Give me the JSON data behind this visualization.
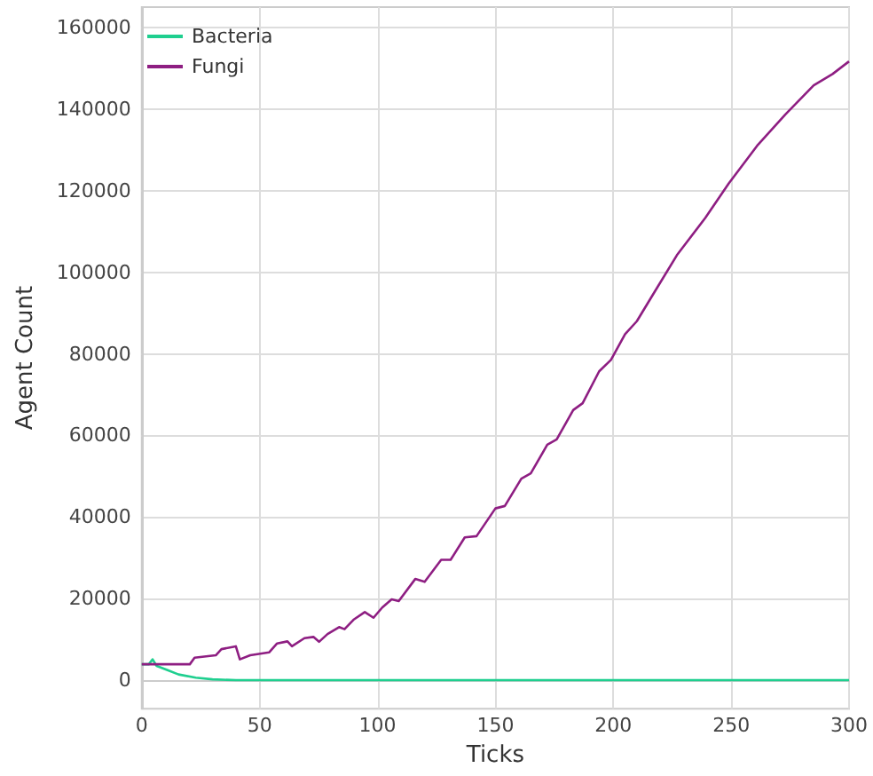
{
  "chart_data": {
    "type": "line",
    "xlabel": "Ticks",
    "ylabel": "Agent Count",
    "xlim": [
      0,
      300
    ],
    "ylim": [
      -7000,
      165000
    ],
    "xticks": [
      0,
      50,
      100,
      150,
      200,
      250,
      300
    ],
    "yticks": [
      0,
      20000,
      40000,
      60000,
      80000,
      100000,
      120000,
      140000,
      160000
    ],
    "grid": true,
    "legend": "top left",
    "marker": "none",
    "series": [
      {
        "name": "Bacteria",
        "color": "#1fcf8f",
        "x": [
          0,
          3,
          4.6,
          6.3,
          10.7,
          15.6,
          22.9,
          30,
          40,
          100,
          200,
          300
        ],
        "values": [
          3900,
          3900,
          5100,
          3500,
          2500,
          1400,
          600,
          200,
          0,
          0,
          0,
          0
        ]
      },
      {
        "name": "Fungi",
        "color": "#8e1e82",
        "x": [
          0,
          20.4,
          22.4,
          31.4,
          33.8,
          39.9,
          41.6,
          46,
          54,
          57.4,
          61.8,
          63.7,
          69,
          72.8,
          75.2,
          78.8,
          83.7,
          86,
          89.8,
          94.6,
          98.3,
          102,
          106,
          109,
          116,
          120,
          127,
          131,
          137,
          142,
          150,
          154,
          161,
          165,
          172,
          176,
          183,
          187,
          194,
          199,
          205,
          210,
          217,
          227,
          239,
          249,
          261,
          273,
          285,
          293,
          300
        ],
        "values": [
          3900,
          3900,
          5500,
          6100,
          7600,
          8300,
          5100,
          6100,
          6800,
          9000,
          9500,
          8300,
          10300,
          10600,
          9400,
          11300,
          13000,
          12500,
          14800,
          16700,
          15300,
          17800,
          19800,
          19400,
          24800,
          24100,
          29500,
          29500,
          35000,
          35300,
          42100,
          42700,
          49400,
          50700,
          57700,
          59000,
          66200,
          67900,
          75700,
          78500,
          84800,
          88000,
          94700,
          104200,
          113300,
          121800,
          131000,
          138700,
          145800,
          148600,
          151700
        ]
      }
    ]
  }
}
